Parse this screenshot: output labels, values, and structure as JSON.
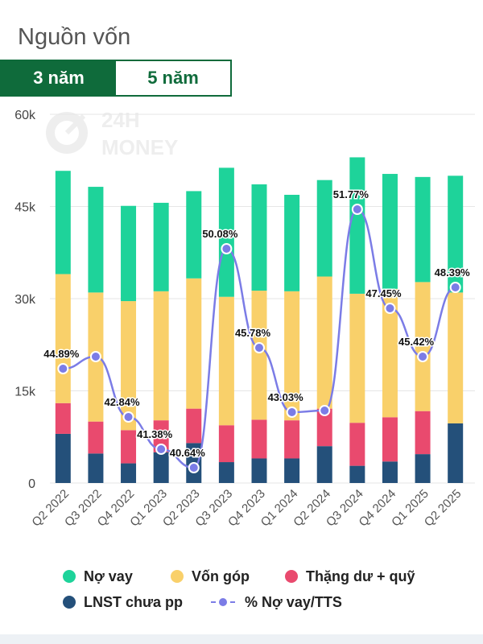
{
  "title": "Nguồn vốn",
  "tabs": [
    {
      "label": "3 năm",
      "active": true
    },
    {
      "label": "5 năm",
      "active": false
    }
  ],
  "watermark": {
    "line1": "24H",
    "line2": "MONEY"
  },
  "colors": {
    "no_vay": "#1ed39a",
    "von_gop": "#f9d06a",
    "thang_du": "#e94a6e",
    "lnst": "#24507a",
    "ratio_line": "#7b7ce6",
    "accent": "#0f6b3b"
  },
  "legend": [
    {
      "label": "Nợ vay",
      "color": "#1ed39a",
      "kind": "dot"
    },
    {
      "label": "Vốn góp",
      "color": "#f9d06a",
      "kind": "dot"
    },
    {
      "label": "Thặng dư + quỹ",
      "color": "#e94a6e",
      "kind": "dot"
    },
    {
      "label": "LNST chưa pp",
      "color": "#24507a",
      "kind": "dot"
    },
    {
      "label": "% Nợ vay/TTS",
      "color": "#7b7ce6",
      "kind": "line"
    }
  ],
  "chart_data": {
    "type": "bar",
    "stacked": true,
    "categories": [
      "Q2 2022",
      "Q3 2022",
      "Q4 2022",
      "Q1 2023",
      "Q2 2023",
      "Q3 2023",
      "Q4 2023",
      "Q1 2024",
      "Q2 2024",
      "Q3 2024",
      "Q4 2024",
      "Q1 2025",
      "Q2 2025"
    ],
    "y_ticks": [
      "0",
      "15k",
      "30k",
      "45k",
      "60k"
    ],
    "ylim": [
      0,
      60000
    ],
    "series": [
      {
        "name": "LNST chưa pp",
        "values": [
          8000,
          4800,
          3200,
          5000,
          6500,
          3400,
          4000,
          4000,
          6000,
          2800,
          3500,
          4700,
          9700
        ]
      },
      {
        "name": "Thặng dư + quỹ",
        "values": [
          5000,
          5200,
          5400,
          5200,
          5600,
          6000,
          6300,
          6200,
          6100,
          7000,
          7200,
          7000,
          0
        ]
      },
      {
        "name": "Vốn góp",
        "values": [
          21000,
          21000,
          21000,
          21000,
          21200,
          20900,
          21000,
          21000,
          21500,
          21000,
          20900,
          21000,
          21300
        ]
      },
      {
        "name": "Nợ vay",
        "values": [
          16800,
          17200,
          15500,
          14400,
          14200,
          21000,
          17300,
          15700,
          15700,
          22200,
          18700,
          17100,
          19000
        ]
      }
    ],
    "ratio_series": {
      "name": "% Nợ vay/TTS",
      "labels": [
        "44.89%",
        "",
        "42.84%",
        "41.38%",
        "40.64%",
        "50.08%",
        "45.78%",
        "43.03%",
        "",
        "51.77%",
        "47.45%",
        "45.42%",
        "48.39%"
      ],
      "values": [
        44.89,
        45.5,
        42.84,
        41.38,
        40.64,
        50.08,
        45.78,
        43.03,
        43.1,
        51.77,
        47.45,
        45.42,
        48.39
      ],
      "range": [
        40,
        52
      ]
    },
    "grid": true,
    "legend_position": "bottom"
  }
}
